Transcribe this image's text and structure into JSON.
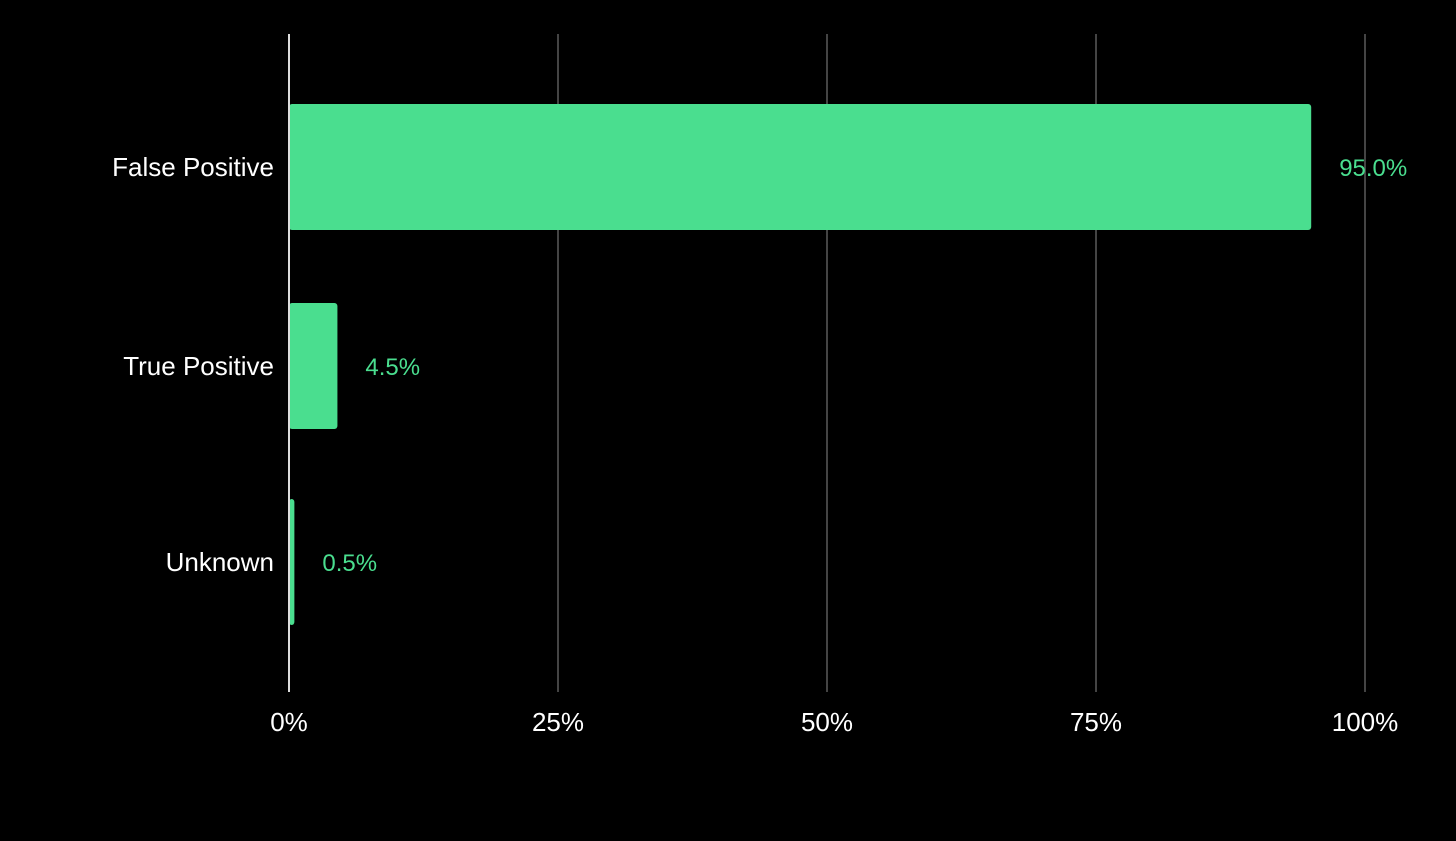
{
  "chart_data": {
    "type": "bar",
    "orientation": "horizontal",
    "categories": [
      "False Positive",
      "True Positive",
      "Unknown"
    ],
    "values": [
      95.0,
      4.5,
      0.5
    ],
    "value_labels": [
      "95.0%",
      "4.5%",
      "0.5%"
    ],
    "xlim": [
      0,
      100
    ],
    "x_ticks": [
      0,
      25,
      50,
      75,
      100
    ],
    "x_tick_labels": [
      "0%",
      "25%",
      "50%",
      "75%",
      "100%"
    ],
    "grid": true,
    "title": "",
    "xlabel": "",
    "ylabel": "",
    "legend": "none",
    "colors": {
      "bar": "#4ade8f",
      "value_label": "#4ade8f",
      "background": "#000000",
      "text": "#ffffff",
      "grid": "#444444",
      "axis": "#dddddd"
    }
  }
}
